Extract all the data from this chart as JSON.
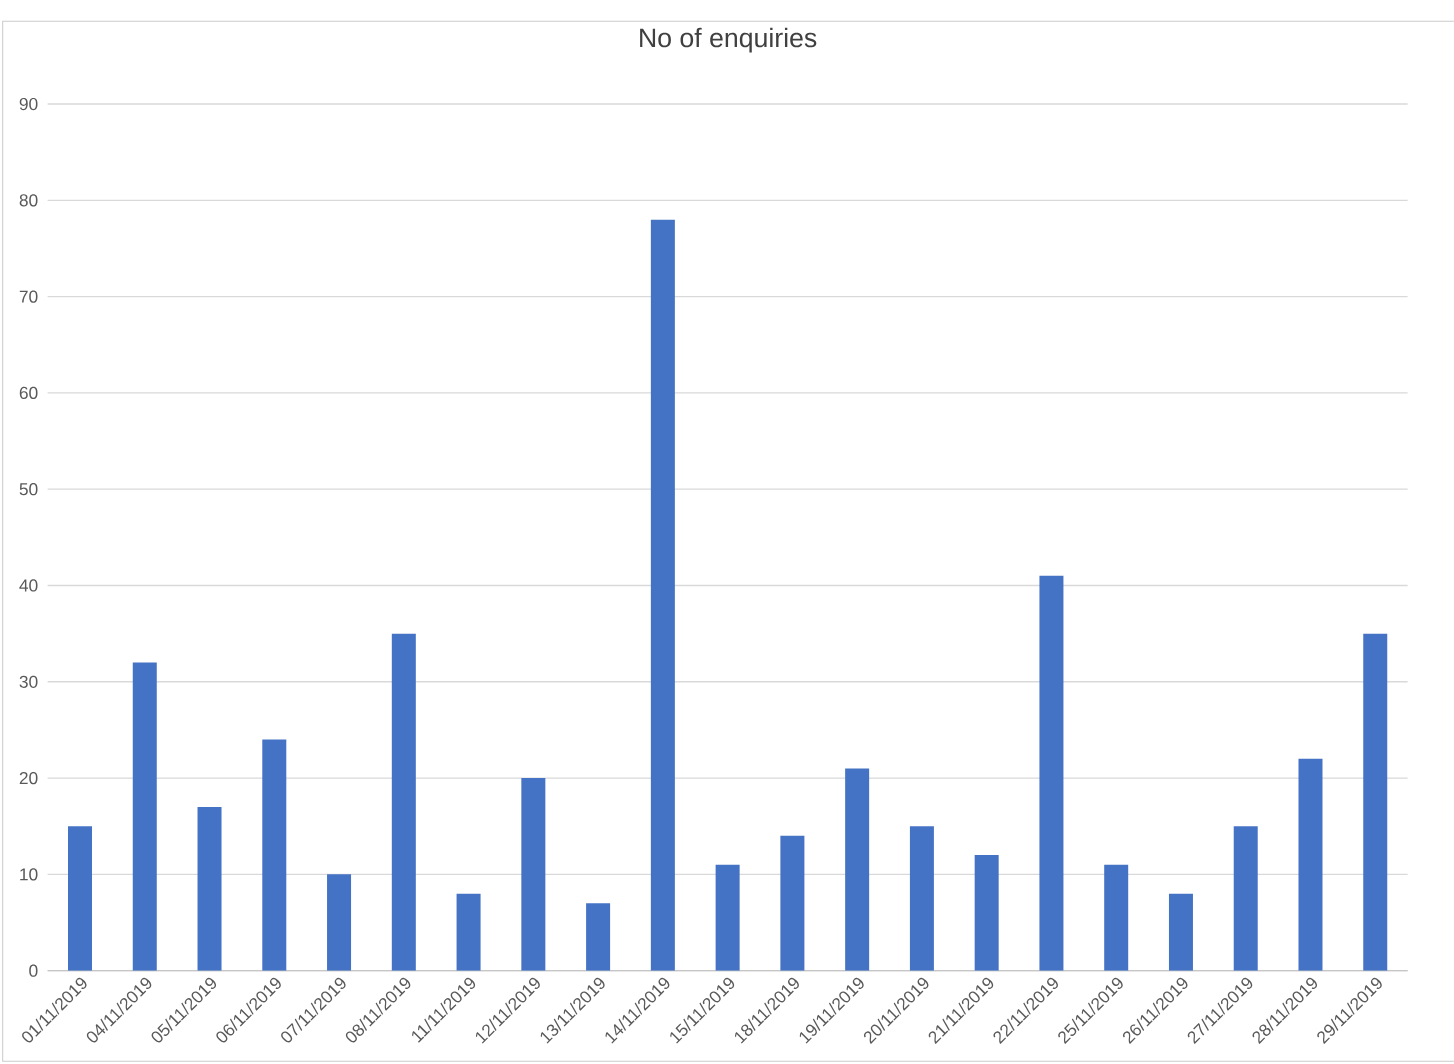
{
  "chart_data": {
    "type": "bar",
    "title": "No of enquiries",
    "categories": [
      "01/11/2019",
      "04/11/2019",
      "05/11/2019",
      "06/11/2019",
      "07/11/2019",
      "08/11/2019",
      "11/11/2019",
      "12/11/2019",
      "13/11/2019",
      "14/11/2019",
      "15/11/2019",
      "18/11/2019",
      "19/11/2019",
      "20/11/2019",
      "21/11/2019",
      "22/11/2019",
      "25/11/2019",
      "26/11/2019",
      "27/11/2019",
      "28/11/2019",
      "29/11/2019"
    ],
    "values": [
      15,
      32,
      17,
      24,
      10,
      35,
      8,
      20,
      7,
      78,
      11,
      14,
      21,
      15,
      12,
      41,
      11,
      8,
      15,
      22,
      35
    ],
    "color": "#4472c4",
    "ylim": [
      0,
      90
    ],
    "yticks": [
      0,
      10,
      20,
      30,
      40,
      50,
      60,
      70,
      80,
      90
    ],
    "grid": "y"
  }
}
